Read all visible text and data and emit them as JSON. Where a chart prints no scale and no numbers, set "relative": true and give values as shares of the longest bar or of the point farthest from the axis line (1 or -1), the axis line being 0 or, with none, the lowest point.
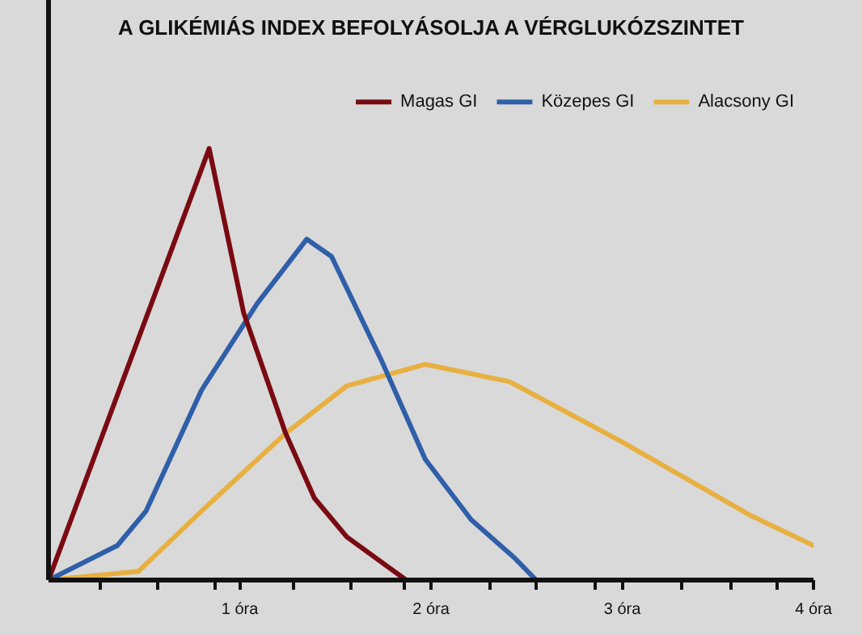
{
  "chart_data": {
    "type": "line",
    "title": "A GLIKÉMIÁS INDEX BEFOLYÁSOLJA A VÉRGLUKÓZSZINTET",
    "relative": true,
    "xlim": [
      0,
      4
    ],
    "xticks": [
      {
        "value": 0.27,
        "label": null
      },
      {
        "value": 0.57,
        "label": null
      },
      {
        "value": 0.87,
        "label": null
      },
      {
        "value": 1,
        "label": "1 óra"
      },
      {
        "value": 1.28,
        "label": null
      },
      {
        "value": 1.58,
        "label": null
      },
      {
        "value": 1.86,
        "label": null
      },
      {
        "value": 2,
        "label": "2 óra"
      },
      {
        "value": 2.31,
        "label": null
      },
      {
        "value": 2.55,
        "label": null
      },
      {
        "value": 2.86,
        "label": null
      },
      {
        "value": 3,
        "label": "3 óra"
      },
      {
        "value": 3.31,
        "label": null
      },
      {
        "value": 3.57,
        "label": null
      },
      {
        "value": 3.81,
        "label": null
      },
      {
        "value": 4,
        "label": "4 óra"
      }
    ],
    "grid": false,
    "legend": "top right",
    "marker": "none",
    "line_style": "solid",
    "series": [
      {
        "name": "Magas GI",
        "color": "#7a0a12",
        "x": [
          0,
          0.84,
          1.02,
          1.24,
          1.39,
          1.56,
          1.87
        ],
        "values": [
          0,
          1,
          0.62,
          0.34,
          0.19,
          0.1,
          0
        ]
      },
      {
        "name": "Közepes GI",
        "color": "#2f5fa8",
        "x": [
          0,
          0.36,
          0.51,
          0.8,
          1.09,
          1.35,
          1.48,
          1.74,
          1.97,
          2.21,
          2.44,
          2.55
        ],
        "values": [
          0,
          0.08,
          0.16,
          0.44,
          0.64,
          0.79,
          0.75,
          0.51,
          0.28,
          0.14,
          0.05,
          0
        ]
      },
      {
        "name": "Alacsony GI",
        "color": "#e8b040",
        "x": [
          0,
          0.47,
          0.8,
          1.24,
          1.56,
          1.97,
          2.41,
          3.0,
          3.67,
          4.0
        ],
        "values": [
          0,
          0.02,
          0.16,
          0.34,
          0.45,
          0.5,
          0.46,
          0.32,
          0.15,
          0.08
        ]
      }
    ]
  }
}
